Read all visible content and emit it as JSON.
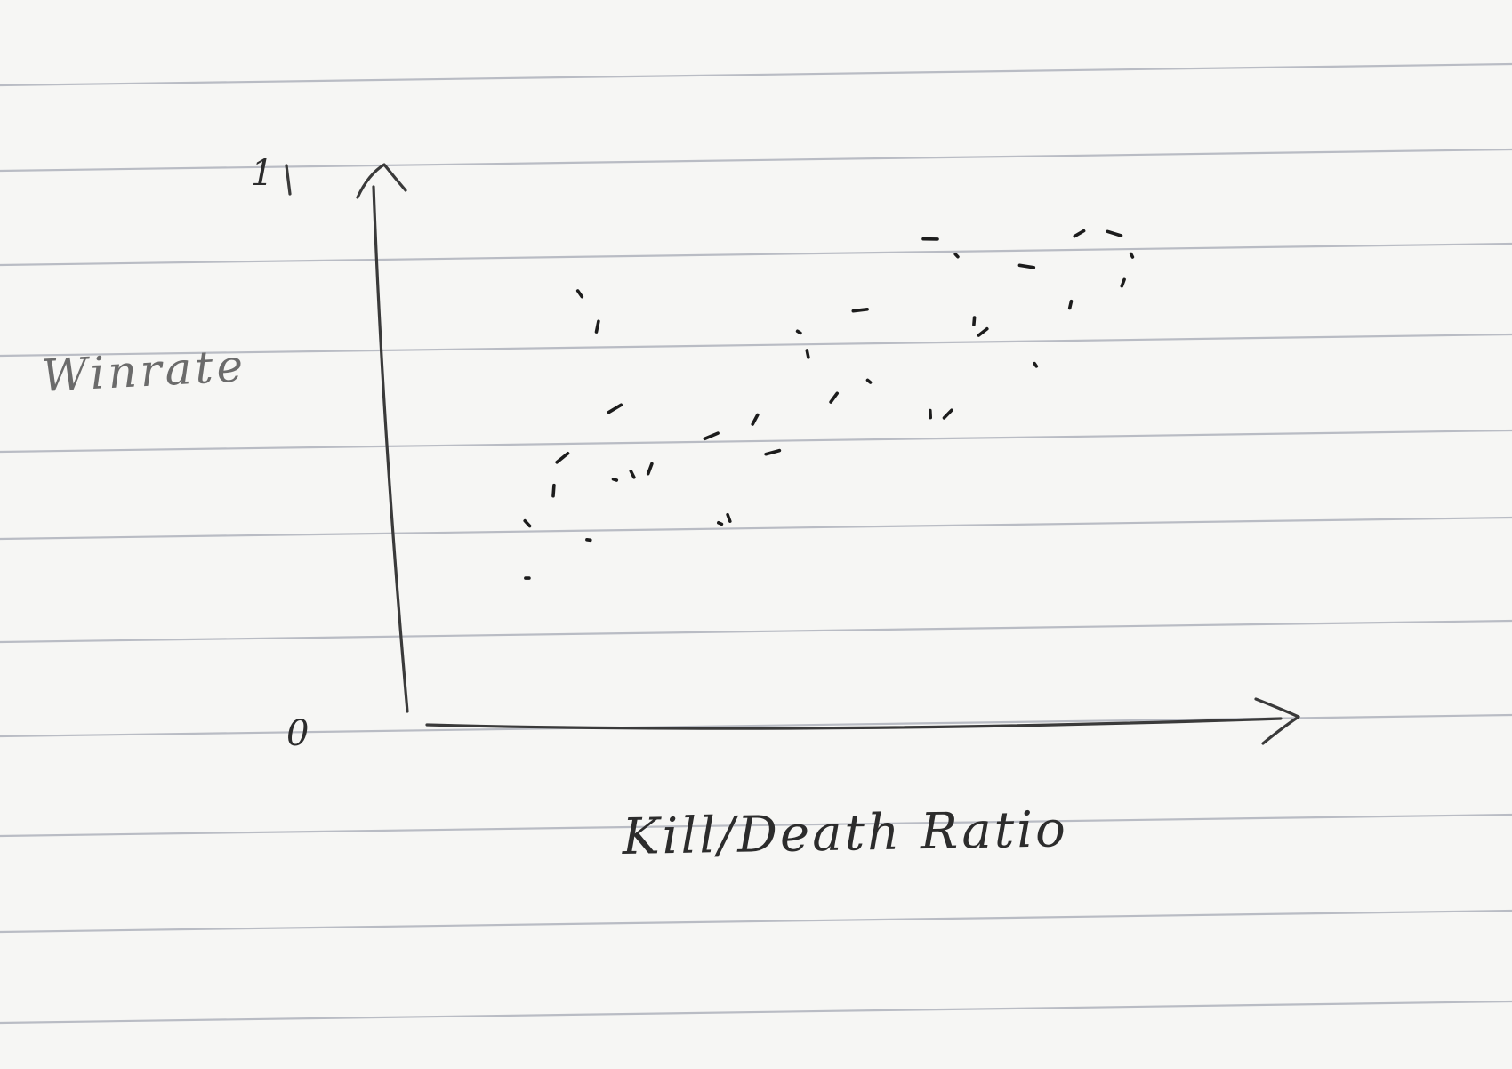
{
  "chart_data": {
    "type": "scatter",
    "title": "",
    "xlabel": "Kill/Death Ratio",
    "ylabel": "Winrate",
    "y_ticks": [
      "0",
      "1"
    ],
    "ylim": [
      0,
      1
    ],
    "xlim": [
      0,
      1
    ],
    "grid": false,
    "points": [
      {
        "x": 0.14,
        "y": 0.26
      },
      {
        "x": 0.14,
        "y": 0.36
      },
      {
        "x": 0.17,
        "y": 0.42
      },
      {
        "x": 0.18,
        "y": 0.48
      },
      {
        "x": 0.21,
        "y": 0.33
      },
      {
        "x": 0.2,
        "y": 0.78
      },
      {
        "x": 0.22,
        "y": 0.72
      },
      {
        "x": 0.24,
        "y": 0.57
      },
      {
        "x": 0.24,
        "y": 0.44
      },
      {
        "x": 0.26,
        "y": 0.45
      },
      {
        "x": 0.28,
        "y": 0.46
      },
      {
        "x": 0.35,
        "y": 0.52
      },
      {
        "x": 0.36,
        "y": 0.36
      },
      {
        "x": 0.37,
        "y": 0.37
      },
      {
        "x": 0.4,
        "y": 0.55
      },
      {
        "x": 0.42,
        "y": 0.49
      },
      {
        "x": 0.45,
        "y": 0.71
      },
      {
        "x": 0.46,
        "y": 0.67
      },
      {
        "x": 0.49,
        "y": 0.59
      },
      {
        "x": 0.52,
        "y": 0.75
      },
      {
        "x": 0.53,
        "y": 0.62
      },
      {
        "x": 0.6,
        "y": 0.56
      },
      {
        "x": 0.62,
        "y": 0.56
      },
      {
        "x": 0.6,
        "y": 0.88
      },
      {
        "x": 0.63,
        "y": 0.85
      },
      {
        "x": 0.65,
        "y": 0.73
      },
      {
        "x": 0.66,
        "y": 0.71
      },
      {
        "x": 0.71,
        "y": 0.83
      },
      {
        "x": 0.72,
        "y": 0.65
      },
      {
        "x": 0.76,
        "y": 0.76
      },
      {
        "x": 0.77,
        "y": 0.89
      },
      {
        "x": 0.81,
        "y": 0.89
      },
      {
        "x": 0.83,
        "y": 0.85
      },
      {
        "x": 0.82,
        "y": 0.8
      }
    ]
  }
}
